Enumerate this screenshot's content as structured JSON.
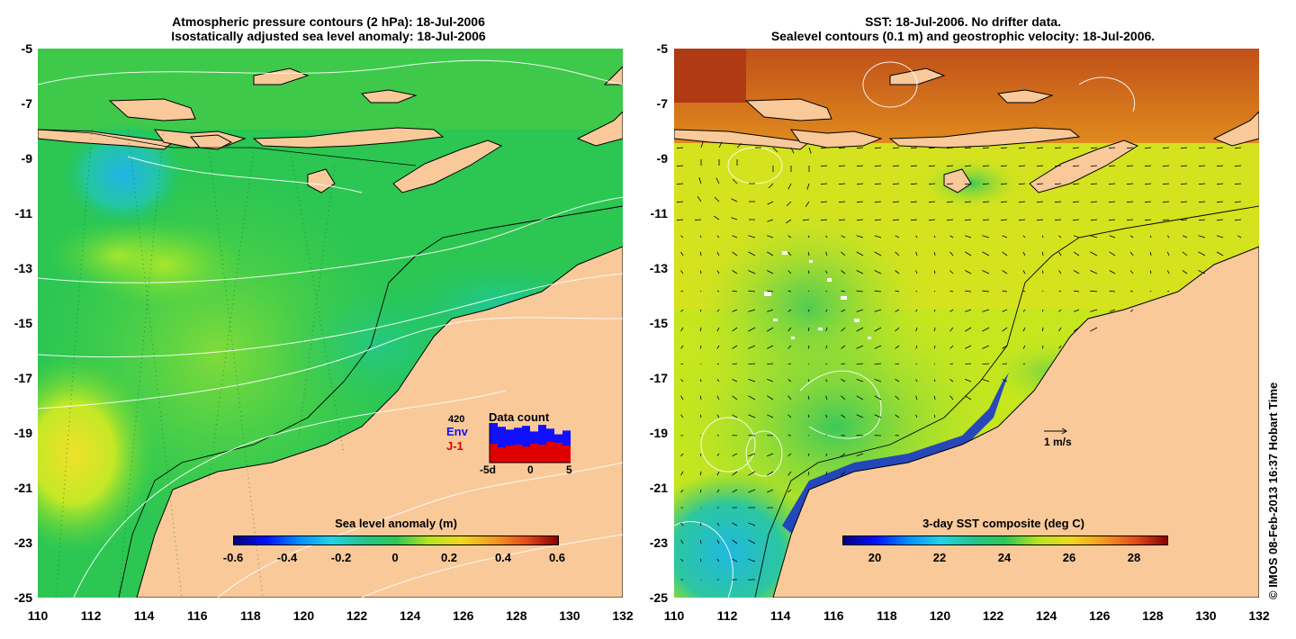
{
  "left_panel": {
    "title_line1": "Atmospheric pressure contours (2 hPa): 18-Jul-2006",
    "title_line2": "Isostatically adjusted sea level anomaly: 18-Jul-2006",
    "colorbar": {
      "title": "Sea level anomaly (m)",
      "ticks": [
        "-0.6",
        "-0.4",
        "-0.2",
        "0",
        "0.2",
        "0.4",
        "0.6"
      ],
      "range": [
        -0.6,
        0.6
      ]
    },
    "inset": {
      "title": "Data count",
      "max_label": "420",
      "env_label": "Env",
      "j1_label": "J-1",
      "x_ticks": [
        "-5d",
        "0",
        "5"
      ],
      "env_counts": [
        420,
        380,
        350,
        370,
        390,
        330,
        400,
        360,
        300,
        340
      ],
      "j1_counts": [
        200,
        160,
        180,
        190,
        170,
        200,
        190,
        220,
        210,
        180
      ]
    }
  },
  "right_panel": {
    "title_line1": "SST: 18-Jul-2006. No drifter data.",
    "title_line2": "Sealevel contours (0.1 m) and geostrophic velocity: 18-Jul-2006.",
    "colorbar": {
      "title": "3-day SST composite (deg C)",
      "ticks": [
        "20",
        "22",
        "24",
        "26",
        "28"
      ],
      "range": [
        19,
        29
      ]
    },
    "scale_label": "1 m/s"
  },
  "axes": {
    "y_ticks": [
      "-5",
      "-7",
      "-9",
      "-11",
      "-13",
      "-15",
      "-17",
      "-19",
      "-21",
      "-23",
      "-25"
    ],
    "x_ticks": [
      "110",
      "112",
      "114",
      "116",
      "118",
      "120",
      "122",
      "124",
      "126",
      "128",
      "130",
      "132"
    ],
    "lon_range": [
      110,
      132
    ],
    "lat_range": [
      -25,
      -5
    ]
  },
  "credit": "© IMOS 08-Feb-2013 16:37 Hobart Time",
  "colors": {
    "land": "#f9c99a",
    "sla_bg": "#22c55a",
    "sst_bg": "#c8e81e"
  }
}
